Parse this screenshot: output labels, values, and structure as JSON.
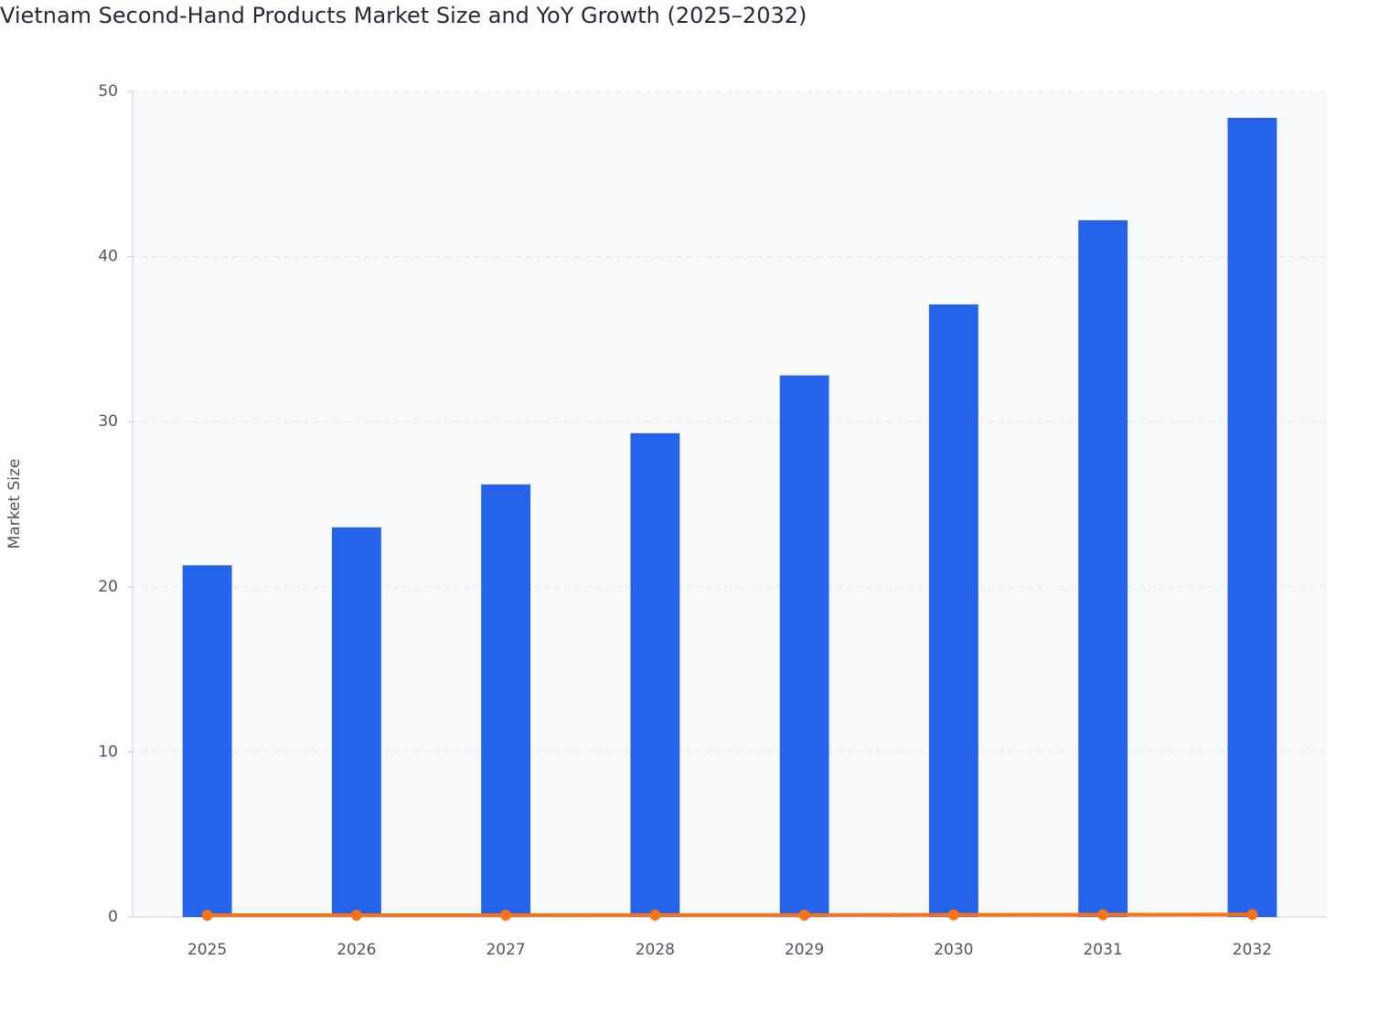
{
  "chart_data": {
    "type": "bar-line",
    "title": "Vietnam Second-Hand Products Market Size and YoY Growth (2025–2032)",
    "y_label": "Market Size",
    "categories": [
      "2025",
      "2026",
      "2027",
      "2028",
      "2029",
      "2030",
      "2031",
      "2032"
    ],
    "series": [
      {
        "type": "bar",
        "color": "#2563eb",
        "values": [
          21.3,
          23.6,
          26.2,
          29.3,
          32.8,
          37.1,
          42.2,
          48.4
        ]
      },
      {
        "type": "line",
        "color": "#f97316",
        "values": [
          0.11,
          0.11,
          0.11,
          0.12,
          0.12,
          0.13,
          0.14,
          0.15
        ]
      }
    ],
    "ylim": [
      0,
      50
    ],
    "yticks": [
      0,
      10,
      20,
      30,
      40,
      50
    ],
    "grid": true
  }
}
